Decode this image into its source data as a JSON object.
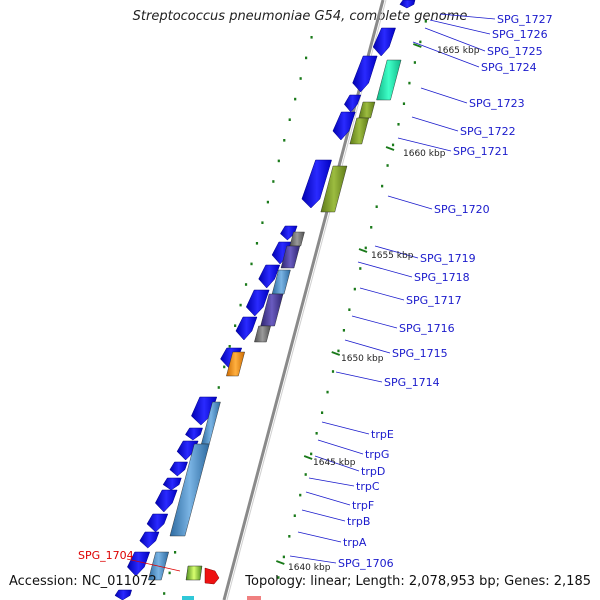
{
  "header": {
    "title": "Streptococcus pneumoniae G54, complete genome"
  },
  "footer": {
    "accession": "Accession: NC_011072",
    "summary": "Topology: linear; Length: 2,078,953 bp; Genes: 2,185"
  },
  "colors": {
    "backbone": "#888888",
    "gene_forward": "#0a0ae8",
    "label": "#1a1acc",
    "label_highlight": "#dd0000",
    "tick": "#1a7a1a",
    "feature_cyan": "#20e0a8",
    "feature_olive": "#7c9a2c",
    "feature_grey": "#707070",
    "feature_slate": "#4a3f96",
    "feature_steel": "#4d8cc4",
    "feature_orange": "#ff8c00",
    "feature_red": "#ee1111"
  },
  "scale_labels": [
    "1665 kbp",
    "1660 kbp",
    "1655 kbp",
    "1650 kbp",
    "1645 kbp",
    "1640 kbp"
  ],
  "gene_labels": [
    "SPG_1727",
    "SPG_1726",
    "SPG_1725",
    "SPG_1724",
    "SPG_1723",
    "SPG_1722",
    "SPG_1721",
    "SPG_1720",
    "SPG_1719",
    "SPG_1718",
    "SPG_1717",
    "SPG_1716",
    "SPG_1715",
    "SPG_1714",
    "trpE",
    "trpG",
    "trpD",
    "trpC",
    "trpF",
    "trpB",
    "trpA",
    "SPG_1706",
    "SPG_1704"
  ]
}
